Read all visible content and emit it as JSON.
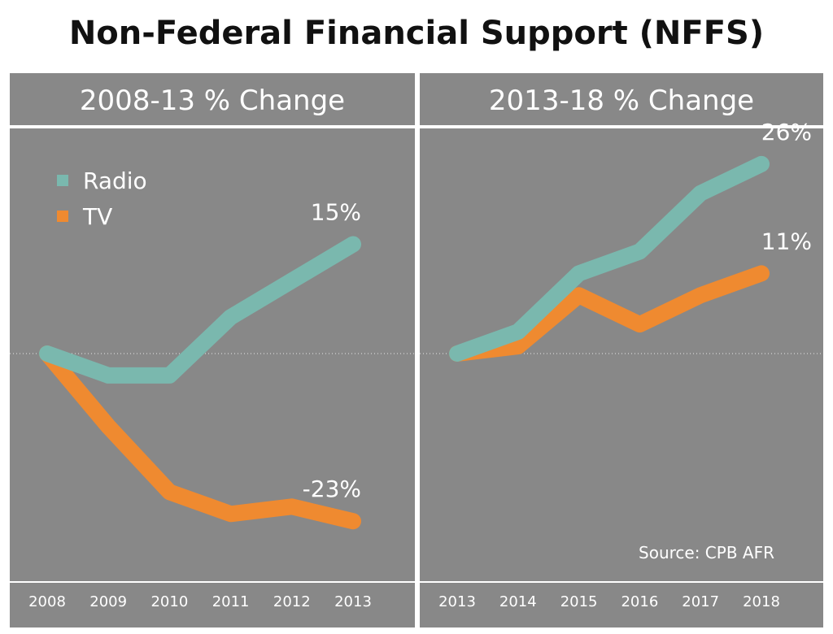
{
  "title": "Non-Federal Financial Support (NFFS)",
  "source": "Source: CPB AFR",
  "colors": {
    "radio": "#7ab8ae",
    "tv": "#ef8a30",
    "panel_bg": "#888888"
  },
  "chart_data": [
    {
      "type": "line",
      "title": "2008-13 % Change",
      "categories": [
        "2008",
        "2009",
        "2010",
        "2011",
        "2012",
        "2013"
      ],
      "ylim": [
        -30,
        30
      ],
      "baseline": 0,
      "legend": [
        "Radio",
        "TV"
      ],
      "series": [
        {
          "name": "Radio",
          "values": [
            0,
            -3,
            -3,
            5,
            10,
            15
          ],
          "end_label": "15%"
        },
        {
          "name": "TV",
          "values": [
            0,
            -10,
            -19,
            -22,
            -21,
            -23
          ],
          "end_label": "-23%"
        }
      ]
    },
    {
      "type": "line",
      "title": "2013-18 % Change",
      "categories": [
        "2013",
        "2014",
        "2015",
        "2016",
        "2017",
        "2018"
      ],
      "ylim": [
        -30,
        30
      ],
      "baseline": 0,
      "series": [
        {
          "name": "Radio",
          "values": [
            0,
            3,
            11,
            14,
            22,
            26
          ],
          "end_label": "26%"
        },
        {
          "name": "TV",
          "values": [
            0,
            1,
            8,
            4,
            8,
            11
          ],
          "end_label": "11%"
        }
      ]
    }
  ]
}
